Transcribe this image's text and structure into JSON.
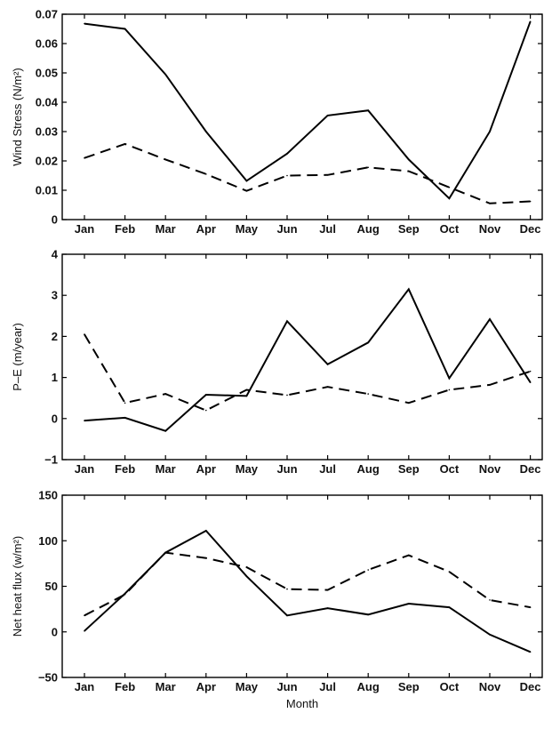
{
  "chart_data": [
    {
      "type": "line",
      "ylabel": "Wind Stress (N/m²)",
      "xlabel": "",
      "categories": [
        "Jan",
        "Feb",
        "Mar",
        "Apr",
        "May",
        "Jun",
        "Jul",
        "Aug",
        "Sep",
        "Oct",
        "Nov",
        "Dec"
      ],
      "ylim": [
        0,
        0.07
      ],
      "yticks": [
        "0",
        "0.01",
        "0.02",
        "0.03",
        "0.04",
        "0.05",
        "0.06",
        "0.07"
      ],
      "grid": false,
      "series": [
        {
          "style": "solid",
          "values": [
            0.0668,
            0.065,
            0.0495,
            0.03,
            0.0132,
            0.0225,
            0.0355,
            0.0372,
            0.0205,
            0.0072,
            0.03,
            0.0675
          ]
        },
        {
          "style": "dashed",
          "values": [
            0.021,
            0.0258,
            0.0205,
            0.0155,
            0.0098,
            0.015,
            0.0152,
            0.0178,
            0.0165,
            0.011,
            0.0055,
            0.0062
          ]
        }
      ]
    },
    {
      "type": "line",
      "ylabel": "P–E (m/year)",
      "xlabel": "",
      "categories": [
        "Jan",
        "Feb",
        "Mar",
        "Apr",
        "May",
        "Jun",
        "Jul",
        "Aug",
        "Sep",
        "Oct",
        "Nov",
        "Dec"
      ],
      "ylim": [
        -1,
        4
      ],
      "yticks": [
        "−1",
        "0",
        "1",
        "2",
        "3",
        "4"
      ],
      "grid": false,
      "series": [
        {
          "style": "solid",
          "values": [
            -0.05,
            0.02,
            -0.3,
            0.58,
            0.55,
            2.37,
            1.32,
            1.85,
            3.15,
            0.98,
            2.42,
            0.88
          ]
        },
        {
          "style": "dashed",
          "values": [
            2.05,
            0.38,
            0.6,
            0.2,
            0.7,
            0.57,
            0.77,
            0.6,
            0.38,
            0.7,
            0.82,
            1.15
          ]
        }
      ]
    },
    {
      "type": "line",
      "ylabel": "Net heat flux (w/m²)",
      "xlabel": "Month",
      "categories": [
        "Jan",
        "Feb",
        "Mar",
        "Apr",
        "May",
        "Jun",
        "Jul",
        "Aug",
        "Sep",
        "Oct",
        "Nov",
        "Dec"
      ],
      "ylim": [
        -50,
        150
      ],
      "yticks": [
        "−50",
        "0",
        "50",
        "100",
        "150"
      ],
      "grid": false,
      "series": [
        {
          "style": "solid",
          "values": [
            1,
            42,
            87,
            111,
            61,
            18,
            26,
            19,
            31,
            27,
            -3,
            -22
          ]
        },
        {
          "style": "dashed",
          "values": [
            18,
            41,
            87,
            81,
            71,
            47,
            46,
            68,
            84,
            66,
            35,
            27
          ]
        }
      ]
    }
  ]
}
